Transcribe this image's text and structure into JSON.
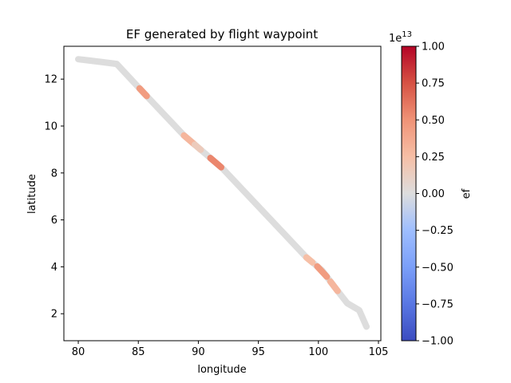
{
  "chart_data": {
    "type": "scatter",
    "title": "EF generated by flight waypoint",
    "xlabel": "longitude",
    "ylabel": "latitude",
    "xlim": [
      78.8,
      105.2
    ],
    "ylim": [
      0.85,
      13.4
    ],
    "xticks": [
      80,
      85,
      90,
      95,
      100,
      105
    ],
    "yticks": [
      2,
      4,
      6,
      8,
      10,
      12
    ],
    "grid": false,
    "path": {
      "lon": [
        80.0,
        80.8,
        83.2,
        85.2,
        88.8,
        92.0,
        99.0,
        100.3,
        101.4,
        102.4,
        103.4,
        104.0
      ],
      "lat": [
        12.85,
        12.8,
        12.65,
        11.55,
        9.6,
        8.2,
        4.4,
        3.85,
        3.1,
        2.45,
        2.15,
        1.45
      ]
    },
    "highlight_segments": [
      {
        "lon_start": 85.1,
        "lon_end": 85.7,
        "ef": 0.45
      },
      {
        "lon_start": 88.8,
        "lon_end": 89.7,
        "ef": 0.3
      },
      {
        "lon_start": 89.7,
        "lon_end": 90.2,
        "ef": 0.15
      },
      {
        "lon_start": 91.0,
        "lon_end": 91.9,
        "ef": 0.55
      },
      {
        "lon_start": 99.0,
        "lon_end": 99.5,
        "ef": 0.25
      },
      {
        "lon_start": 99.9,
        "lon_end": 100.7,
        "ef": 0.45
      },
      {
        "lon_start": 101.0,
        "lon_end": 101.6,
        "ef": 0.3
      }
    ],
    "colorbar": {
      "label": "ef",
      "multiplier": "1e13",
      "min": -1.0,
      "max": 1.0,
      "ticks": [
        -1.0,
        -0.75,
        -0.5,
        -0.25,
        0.0,
        0.25,
        0.5,
        0.75,
        1.0
      ],
      "tick_labels": [
        "−1.00",
        "−0.75",
        "−0.50",
        "−0.25",
        "0.00",
        "0.25",
        "0.50",
        "0.75",
        "1.00"
      ],
      "colormap": "coolwarm"
    }
  }
}
